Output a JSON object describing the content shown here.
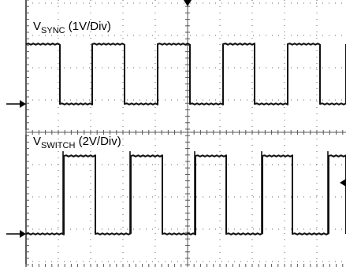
{
  "chart_data": {
    "type": "line",
    "grid": true,
    "series": [
      {
        "label": {
          "main": "V",
          "sub": "SYNC",
          "rest": " (1V/Div)"
        },
        "values": [
          1,
          0,
          1,
          0,
          1,
          0,
          1,
          0,
          1,
          0,
          1
        ]
      },
      {
        "label": {
          "main": "V",
          "sub": "SWITCH",
          "rest": " (2V/Div)"
        },
        "values": [
          0,
          1,
          0,
          1,
          0,
          1,
          0,
          1,
          0,
          1,
          0
        ]
      }
    ]
  }
}
